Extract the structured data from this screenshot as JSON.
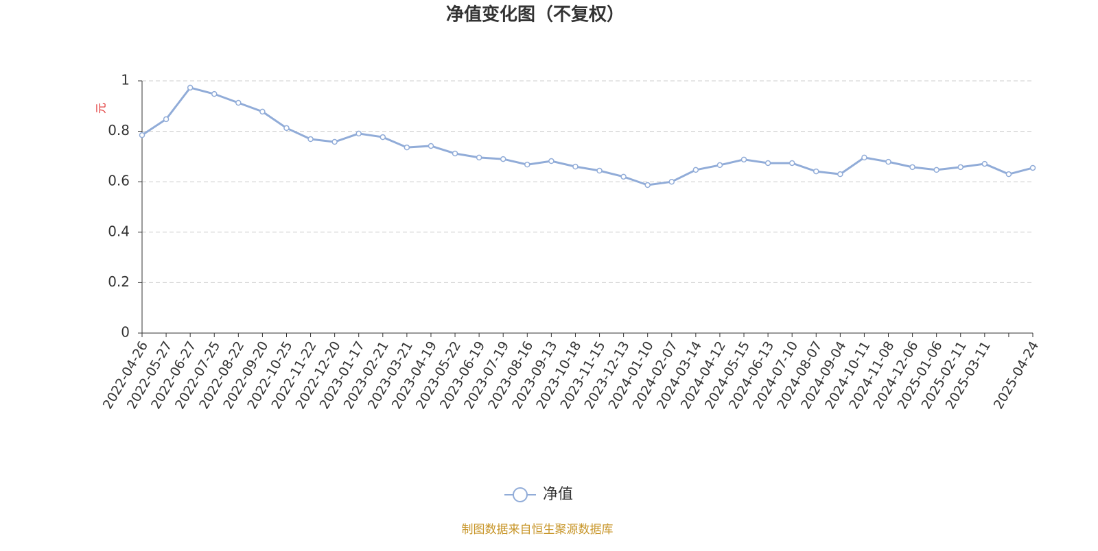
{
  "chart_data": {
    "type": "line",
    "title": "净值变化图（不复权）",
    "y_label": "元",
    "source": "制图数据来自恒生聚源数据库",
    "categories": [
      "2022-04-26",
      "2022-05-27",
      "2022-06-27",
      "2022-07-25",
      "2022-08-22",
      "2022-09-20",
      "2022-10-25",
      "2022-11-22",
      "2022-12-20",
      "2023-01-17",
      "2023-02-21",
      "2023-03-21",
      "2023-04-19",
      "2023-05-22",
      "2023-06-19",
      "2023-07-19",
      "2023-08-16",
      "2023-09-13",
      "2023-10-18",
      "2023-11-15",
      "2023-12-13",
      "2024-01-10",
      "2024-02-07",
      "2024-03-14",
      "2024-04-12",
      "2024-05-15",
      "2024-06-13",
      "2024-07-10",
      "2024-08-07",
      "2024-09-04",
      "2024-10-11",
      "2024-11-08",
      "2024-12-06",
      "2025-01-06",
      "2025-02-11",
      "2025-03-11",
      null,
      "2025-04-24"
    ],
    "series": [
      {
        "name": "净值",
        "color": "#91acd8",
        "values": [
          0.785,
          0.848,
          0.973,
          0.948,
          0.913,
          0.878,
          0.813,
          0.769,
          0.758,
          0.791,
          0.777,
          0.736,
          0.742,
          0.712,
          0.696,
          0.69,
          0.668,
          0.682,
          0.66,
          0.644,
          0.62,
          0.587,
          0.6,
          0.647,
          0.666,
          0.688,
          0.674,
          0.674,
          0.641,
          0.63,
          0.696,
          0.679,
          0.658,
          0.647,
          0.658,
          0.671,
          0.63,
          0.655
        ]
      }
    ],
    "ylim": [
      0,
      1
    ],
    "yticks": [
      0,
      0.2,
      0.4,
      0.6,
      0.8,
      1
    ],
    "grid": true,
    "legend": "bottom"
  }
}
